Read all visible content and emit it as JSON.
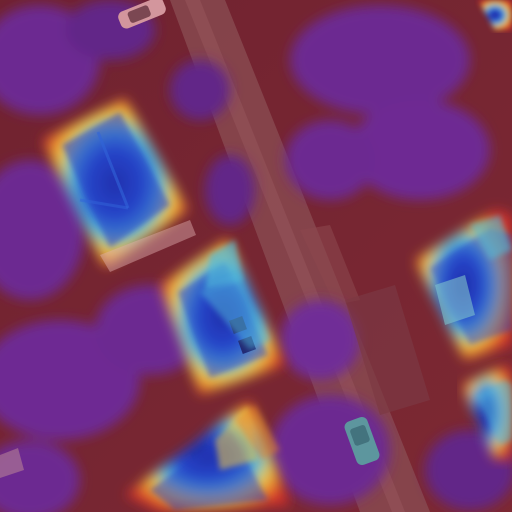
{
  "image": {
    "kind": "aerial-heatmap-overlay",
    "colors": {
      "base_red": "#7a2530",
      "tree_purple": "#6a2a9a",
      "road": "#8a4f55",
      "heat_red": "#e0302a",
      "heat_orange": "#f08a2a",
      "heat_yellow": "#f4d84a",
      "heat_cyan": "#4cc6e8",
      "heat_blue": "#1a3fd0",
      "heat_deep_blue": "#14209a"
    }
  }
}
